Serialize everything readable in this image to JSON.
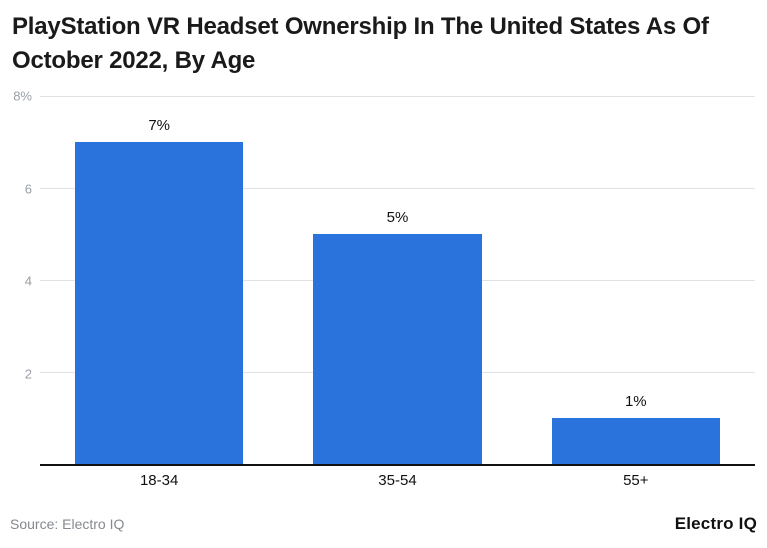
{
  "title": "PlayStation VR Headset Ownership In The United States As Of October 2022, By Age",
  "footer": {
    "source": "Source: Electro IQ",
    "brand": "Electro IQ"
  },
  "colors": {
    "bar": "#2b73dc",
    "grid": "#e0e1e4",
    "axis": "#111111",
    "tick_label": "#9aa0a6",
    "source_text": "#85898f",
    "title_text": "#1a1a1a"
  },
  "chart_data": {
    "type": "bar",
    "title": "PlayStation VR Headset Ownership In The United States As Of October 2022, By Age",
    "categories": [
      "18-34",
      "35-54",
      "55+"
    ],
    "values": [
      7,
      5,
      1
    ],
    "value_labels": [
      "7%",
      "5%",
      "1%"
    ],
    "xlabel": "",
    "ylabel": "",
    "ylim": [
      0,
      8
    ],
    "yticks": [
      {
        "value": 8,
        "label": "8%"
      },
      {
        "value": 6,
        "label": "6"
      },
      {
        "value": 4,
        "label": "4"
      },
      {
        "value": 2,
        "label": "2"
      }
    ],
    "grid": true,
    "legend": false,
    "bar_color": "#2b73dc"
  }
}
